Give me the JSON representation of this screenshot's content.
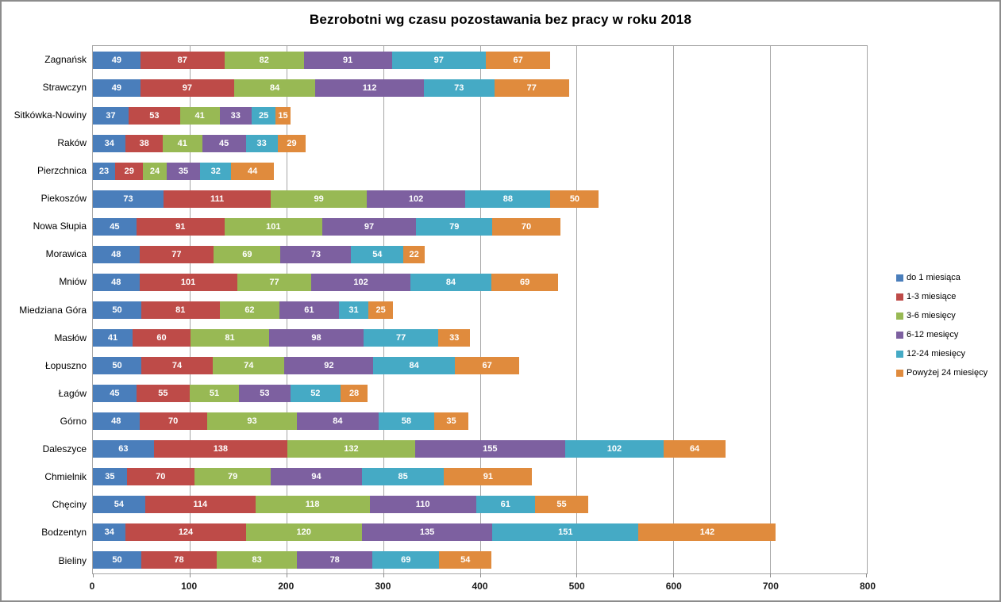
{
  "title": "Bezrobotni wg czasu pozostawania bez pracy w roku 2018",
  "chart_data": {
    "type": "bar",
    "orientation": "horizontal",
    "stacked": true,
    "title": "Bezrobotni wg czasu pozostawania bez pracy w roku 2018",
    "xlabel": "",
    "ylabel": "",
    "xlim": [
      0,
      800
    ],
    "x_ticks": [
      0,
      100,
      200,
      300,
      400,
      500,
      600,
      700,
      800
    ],
    "grid": "vertical-major",
    "legend_position": "right",
    "value_labels": "inside-center-white-bold",
    "categories": [
      "Zagnańsk",
      "Strawczyn",
      "Sitkówka-Nowiny",
      "Raków",
      "Pierzchnica",
      "Piekoszów",
      "Nowa Słupia",
      "Morawica",
      "Mniów",
      "Miedziana Góra",
      "Masłów",
      "Łopuszno",
      "Łagów",
      "Górno",
      "Daleszyce",
      "Chmielnik",
      "Chęciny",
      "Bodzentyn",
      "Bieliny"
    ],
    "series": [
      {
        "name": "do 1 miesiąca",
        "color": "#4a7ebb",
        "values": [
          49,
          49,
          37,
          34,
          23,
          73,
          45,
          48,
          48,
          50,
          41,
          50,
          45,
          48,
          63,
          35,
          54,
          34,
          50
        ]
      },
      {
        "name": "1-3 miesiące",
        "color": "#be4b48",
        "values": [
          87,
          97,
          53,
          38,
          29,
          111,
          91,
          77,
          101,
          81,
          60,
          74,
          55,
          70,
          138,
          70,
          114,
          124,
          78
        ]
      },
      {
        "name": "3-6 miesięcy",
        "color": "#98b954",
        "values": [
          82,
          84,
          41,
          41,
          24,
          99,
          101,
          69,
          77,
          62,
          81,
          74,
          51,
          93,
          132,
          79,
          118,
          120,
          83
        ]
      },
      {
        "name": "6-12 mesięcy",
        "color": "#7d60a0",
        "values": [
          91,
          112,
          33,
          45,
          35,
          102,
          97,
          73,
          102,
          61,
          98,
          92,
          53,
          84,
          155,
          94,
          110,
          135,
          78
        ]
      },
      {
        "name": "12-24 miesięcy",
        "color": "#45aac5",
        "values": [
          97,
          73,
          25,
          33,
          32,
          88,
          79,
          54,
          84,
          31,
          77,
          84,
          52,
          58,
          102,
          85,
          61,
          151,
          69
        ]
      },
      {
        "name": "Powyżej 24 miesięcy",
        "color": "#e08b3d",
        "values": [
          67,
          77,
          15,
          29,
          44,
          50,
          70,
          22,
          69,
          25,
          33,
          67,
          28,
          35,
          64,
          91,
          55,
          142,
          54
        ]
      }
    ]
  },
  "style_colors": {
    "frame_border": "#8c8c8c",
    "gridline": "#a6a6a6",
    "axis_tick": "#8c8c8c",
    "value_label_text": "#ffffff",
    "background": "#ffffff"
  }
}
